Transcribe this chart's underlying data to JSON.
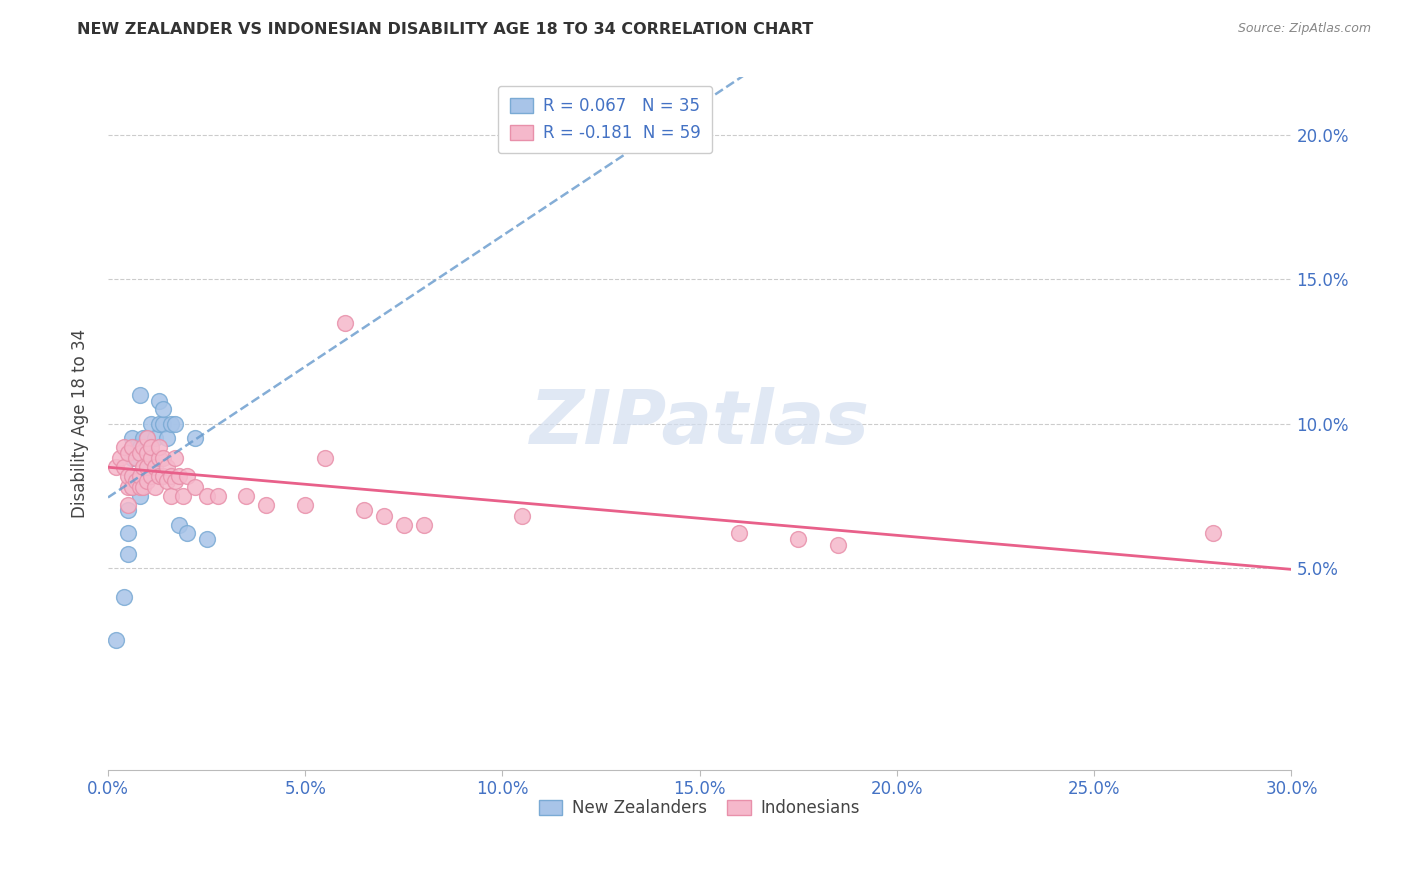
{
  "title": "NEW ZEALANDER VS INDONESIAN DISABILITY AGE 18 TO 34 CORRELATION CHART",
  "source": "Source: ZipAtlas.com",
  "ylabel": "Disability Age 18 to 34",
  "xlim": [
    0.0,
    0.3
  ],
  "ylim": [
    -0.02,
    0.22
  ],
  "yticks": [
    0.05,
    0.1,
    0.15,
    0.2
  ],
  "ytick_labels": [
    "5.0%",
    "10.0%",
    "15.0%",
    "20.0%"
  ],
  "xtick_vals": [
    0.0,
    0.05,
    0.1,
    0.15,
    0.2,
    0.25,
    0.3
  ],
  "xtick_labels": [
    "0.0%",
    "5.0%",
    "10.0%",
    "15.0%",
    "20.0%",
    "25.0%",
    "30.0%"
  ],
  "legend_r1": "R = 0.067",
  "legend_n1": "N = 35",
  "legend_r2": "R = -0.181",
  "legend_n2": "N = 59",
  "nz_color": "#a8c4e8",
  "nz_edge_color": "#7aaad4",
  "indo_color": "#f5b8cb",
  "indo_edge_color": "#e890aa",
  "nz_line_color": "#6699cc",
  "nz_line_style": "--",
  "indo_line_color": "#e8608a",
  "indo_line_style": "-",
  "watermark": "ZIPatlas",
  "watermark_color": "#d4dff0",
  "nz_points_x": [
    0.002,
    0.004,
    0.005,
    0.005,
    0.005,
    0.006,
    0.006,
    0.006,
    0.006,
    0.006,
    0.007,
    0.007,
    0.008,
    0.008,
    0.008,
    0.008,
    0.009,
    0.009,
    0.009,
    0.01,
    0.01,
    0.011,
    0.011,
    0.012,
    0.013,
    0.013,
    0.014,
    0.014,
    0.015,
    0.016,
    0.017,
    0.018,
    0.02,
    0.022,
    0.025
  ],
  "nz_points_y": [
    0.025,
    0.04,
    0.055,
    0.062,
    0.07,
    0.078,
    0.082,
    0.088,
    0.092,
    0.095,
    0.082,
    0.092,
    0.075,
    0.082,
    0.092,
    0.11,
    0.082,
    0.09,
    0.095,
    0.085,
    0.095,
    0.085,
    0.1,
    0.095,
    0.1,
    0.108,
    0.1,
    0.105,
    0.095,
    0.1,
    0.1,
    0.065,
    0.062,
    0.095,
    0.06
  ],
  "indo_points_x": [
    0.002,
    0.003,
    0.004,
    0.004,
    0.005,
    0.005,
    0.005,
    0.005,
    0.006,
    0.006,
    0.006,
    0.007,
    0.007,
    0.008,
    0.008,
    0.008,
    0.009,
    0.009,
    0.009,
    0.01,
    0.01,
    0.01,
    0.01,
    0.011,
    0.011,
    0.011,
    0.012,
    0.012,
    0.013,
    0.013,
    0.013,
    0.014,
    0.014,
    0.015,
    0.015,
    0.016,
    0.016,
    0.017,
    0.017,
    0.018,
    0.019,
    0.02,
    0.022,
    0.025,
    0.028,
    0.035,
    0.04,
    0.05,
    0.055,
    0.06,
    0.065,
    0.07,
    0.075,
    0.08,
    0.105,
    0.16,
    0.175,
    0.185,
    0.28
  ],
  "indo_points_y": [
    0.085,
    0.088,
    0.085,
    0.092,
    0.072,
    0.078,
    0.082,
    0.09,
    0.078,
    0.082,
    0.092,
    0.08,
    0.088,
    0.078,
    0.082,
    0.09,
    0.078,
    0.085,
    0.092,
    0.08,
    0.085,
    0.09,
    0.095,
    0.082,
    0.088,
    0.092,
    0.078,
    0.085,
    0.082,
    0.088,
    0.092,
    0.082,
    0.088,
    0.08,
    0.085,
    0.075,
    0.082,
    0.08,
    0.088,
    0.082,
    0.075,
    0.082,
    0.078,
    0.075,
    0.075,
    0.075,
    0.072,
    0.072,
    0.088,
    0.135,
    0.07,
    0.068,
    0.065,
    0.065,
    0.068,
    0.062,
    0.06,
    0.058,
    0.062
  ]
}
